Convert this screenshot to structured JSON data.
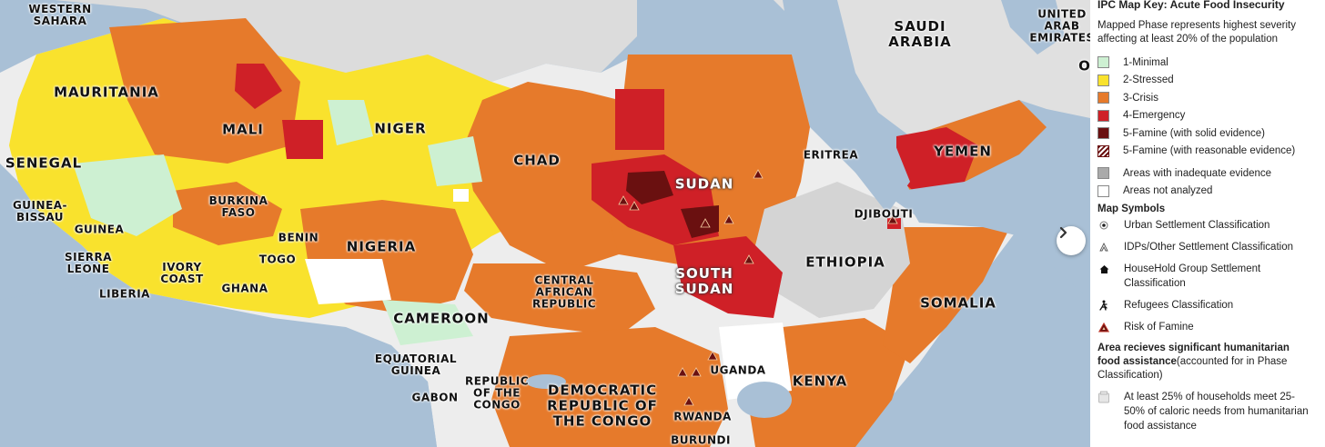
{
  "map": {
    "labels": {
      "western_sahara": "WESTERN\nSAHARA",
      "mauritania": "MAURITANIA",
      "mali": "MALI",
      "niger": "NIGER",
      "chad": "CHAD",
      "sudan": "SUDAN",
      "saudi_arabia": "SAUDI\nARABIA",
      "uae": "UNITED\nARAB\nEMIRATES",
      "yemen": "YEMEN",
      "eritrea": "ERITREA",
      "djibouti": "DJIBOUTI",
      "ethiopia": "ETHIOPIA",
      "somalia": "SOMALIA",
      "kenya": "KENYA",
      "uganda": "UGANDA",
      "rwanda": "RWANDA",
      "burundi": "BURUNDI",
      "drc": "DEMOCRATIC\nREPUBLIC OF\nTHE CONGO",
      "rep_congo": "REPUBLIC\nOF THE\nCONGO",
      "gabon": "GABON",
      "eq_guinea": "EQUATORIAL\nGUINEA",
      "cameroon": "CAMEROON",
      "car": "CENTRAL\nAFRICAN\nREPUBLIC",
      "south_sudan": "SOUTH\nSUDAN",
      "nigeria": "NIGERIA",
      "benin": "BENIN",
      "togo": "TOGO",
      "ghana": "GHANA",
      "ivory_coast": "IVORY\nCOAST",
      "liberia": "LIBERIA",
      "sierra_leone": "SIERRA\nLEONE",
      "guinea": "GUINEA",
      "guinea_bissau": "GUINEA-\nBISSAU",
      "senegal": "SENEGAL",
      "burkina_faso": "BURKINA\nFASO",
      "oman_partial": "O"
    }
  },
  "legend": {
    "title": "IPC Map Key: Acute Food Insecurity",
    "subtitle": "Mapped Phase represents highest severity affecting at least 20% of the population",
    "phases": [
      {
        "label": "1-Minimal",
        "color": "#cdf0d2"
      },
      {
        "label": "2-Stressed",
        "color": "#f9e22d"
      },
      {
        "label": "3-Crisis",
        "color": "#e67a2b"
      },
      {
        "label": "4-Emergency",
        "color": "#cf2027"
      },
      {
        "label": "5-Famine (with solid evidence)",
        "color": "#6a1010"
      },
      {
        "label": "5-Famine (with reasonable evidence)",
        "color": "hatched"
      }
    ],
    "other_areas": [
      {
        "label": "Areas with inadequate evidence",
        "color": "#aaaaaa"
      },
      {
        "label": "Areas not analyzed",
        "color": "#ffffff"
      }
    ],
    "symbols_title": "Map Symbols",
    "symbols": [
      {
        "label": "Urban Settlement Classification",
        "icon": "urban-settlement-icon"
      },
      {
        "label": "IDPs/Other Settlement Classification",
        "icon": "idp-settlement-icon"
      },
      {
        "label": "HouseHold Group Settlement Classification",
        "icon": "household-group-icon"
      },
      {
        "label": "Refugees Classification",
        "icon": "refugee-icon"
      },
      {
        "label": "Risk of Famine",
        "icon": "risk-of-famine-icon"
      }
    ],
    "assistance_title": "Area recieves significant humanitarian food assistance",
    "assistance_note": "(accounted for in Phase Classification)",
    "assistance_item": "At least 25% of households meet 25-50% of caloric needs from humanitarian food assistance"
  },
  "controls": {
    "next_icon": "chevron-right-icon"
  }
}
